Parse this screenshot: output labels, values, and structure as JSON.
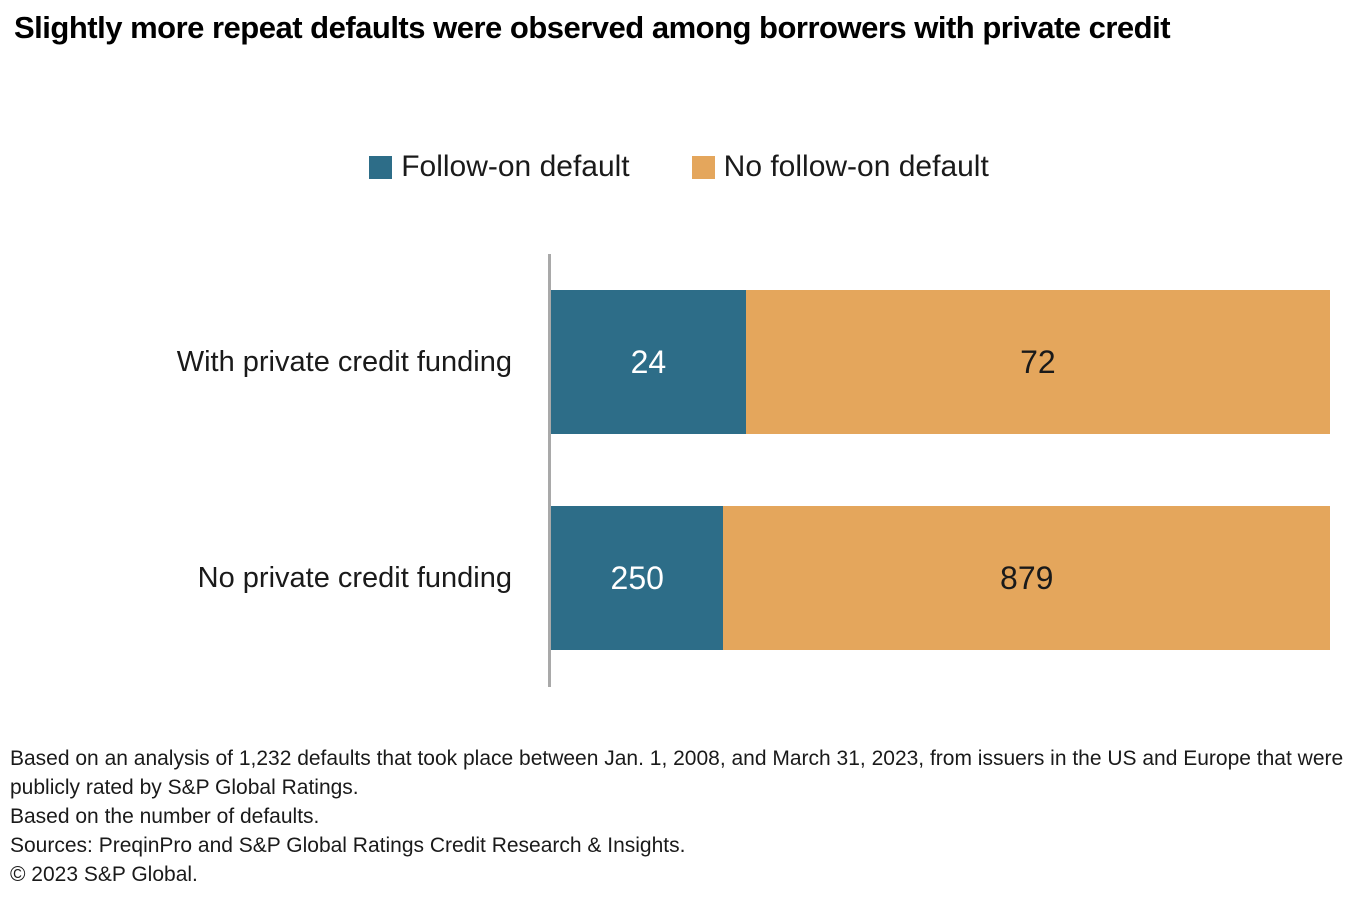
{
  "title": "Slightly more repeat defaults were observed among borrowers with private credit",
  "legend": [
    {
      "label": "Follow-on default",
      "color": "#2D6D88"
    },
    {
      "label": "No follow-on default",
      "color": "#E4A65C"
    }
  ],
  "chart_data": {
    "type": "bar",
    "orientation": "horizontal",
    "stacked": true,
    "percent_stacked": true,
    "categories": [
      "With private credit funding",
      "No private credit funding"
    ],
    "series": [
      {
        "name": "Follow-on default",
        "color": "#2D6D88",
        "values": [
          24,
          250
        ]
      },
      {
        "name": "No follow-on default",
        "color": "#E4A65C",
        "values": [
          72,
          879
        ]
      }
    ],
    "value_labels_shown": true,
    "axis_line_color": "#A9A9A9",
    "legend_position": "top-center",
    "grid": false
  },
  "footnotes": [
    "Based on an analysis of 1,232 defaults that took place between Jan. 1, 2008, and March 31, 2023, from issuers in the US and Europe that were publicly rated by S&P Global Ratings.",
    "Based on the number of defaults.",
    "Sources: PreqinPro and S&P Global Ratings Credit Research & Insights.",
    "© 2023 S&P Global."
  ]
}
